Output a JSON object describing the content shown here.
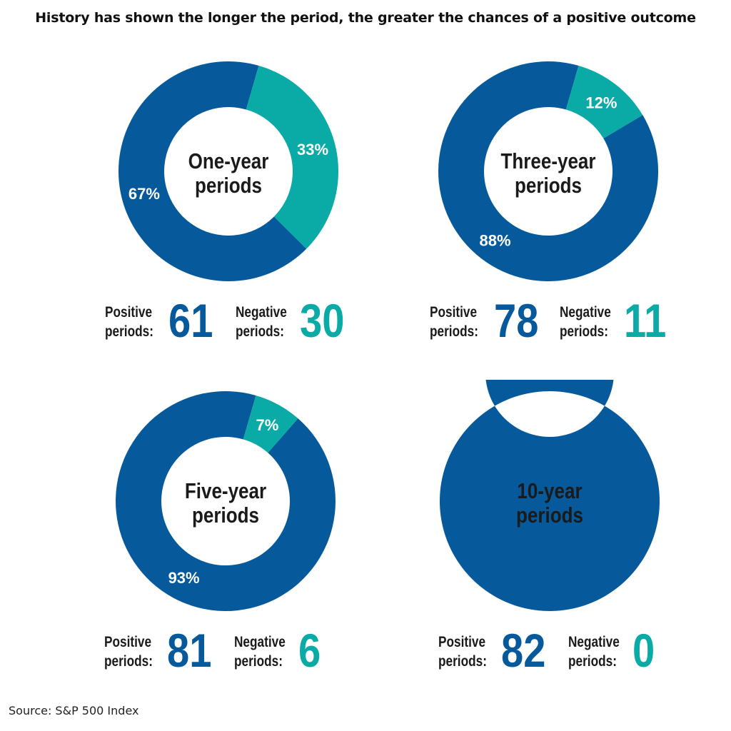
{
  "title": "History has shown the longer the period, the greater the chances of a positive outcome",
  "source": "Source: S&P 500 Index",
  "colors": {
    "positive": "#065a9b",
    "negative": "#0aaaa6",
    "text": "#1a1a1a"
  },
  "stat_labels": {
    "positive_line1": "Positive",
    "positive_line2": "periods:",
    "negative_line1": "Negative",
    "negative_line2": "periods:"
  },
  "chart_data": [
    {
      "type": "pie",
      "center_label": [
        "One-year",
        "periods"
      ],
      "slices": [
        {
          "name": "Positive",
          "value": 67,
          "label": "67%"
        },
        {
          "name": "Negative",
          "value": 33,
          "label": "33%"
        }
      ],
      "positive_periods": "61",
      "negative_periods": "30"
    },
    {
      "type": "pie",
      "center_label": [
        "Three-year",
        "periods"
      ],
      "slices": [
        {
          "name": "Positive",
          "value": 88,
          "label": "88%"
        },
        {
          "name": "Negative",
          "value": 12,
          "label": "12%"
        }
      ],
      "positive_periods": "78",
      "negative_periods": "11"
    },
    {
      "type": "pie",
      "center_label": [
        "Five-year",
        "periods"
      ],
      "slices": [
        {
          "name": "Positive",
          "value": 93,
          "label": "93%"
        },
        {
          "name": "Negative",
          "value": 7,
          "label": "7%"
        }
      ],
      "positive_periods": "81",
      "negative_periods": "6"
    },
    {
      "type": "pie",
      "center_label": [
        "10-year",
        "periods"
      ],
      "slices": [
        {
          "name": "Positive",
          "value": 100,
          "label": "100%"
        },
        {
          "name": "Negative",
          "value": 0,
          "label": ""
        }
      ],
      "positive_periods": "82",
      "negative_periods": "0"
    }
  ]
}
